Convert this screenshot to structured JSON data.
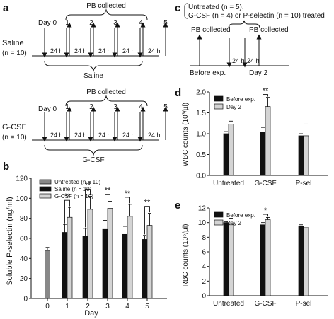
{
  "panels": {
    "a": {
      "letter": "a",
      "top": {
        "group_label": "Saline",
        "group_n": "(n = 10)",
        "day0": "Day 0",
        "day_numbers": [
          "1",
          "2",
          "3",
          "4",
          "5"
        ],
        "interval": "24 h",
        "pb": "PB collected",
        "treatment": "Saline"
      },
      "bottom": {
        "group_label": "G-CSF",
        "group_n": "(n = 10)",
        "day0": "Day 0",
        "day_numbers": [
          "1",
          "2",
          "3",
          "4",
          "5"
        ],
        "interval": "24 h",
        "pb": "PB collected",
        "treatment": "G-CSF"
      }
    },
    "c": {
      "letter": "c",
      "line1": "Untreated (n = 5),",
      "line2": "G-CSF (n = 4) or P-selectin (n = 10) treated",
      "pb_left": "PB collected",
      "pb_right": "PB collected",
      "interval": "24 h",
      "before": "Before exp.",
      "day2": "Day 2"
    }
  },
  "chart_data": [
    {
      "id": "b",
      "letter": "b",
      "type": "bar",
      "ylabel": "Soluble P-selectin (ng/ml)",
      "xlabel": "Day",
      "ylim": [
        0,
        120
      ],
      "yticks": [
        "0",
        "20",
        "40",
        "60",
        "80",
        "100",
        "120"
      ],
      "categories": [
        "0",
        "1",
        "2",
        "3",
        "4",
        "5"
      ],
      "legend": [
        "Untreated (n = 10)",
        "Saline (n = 10)",
        "G-CSF (n = 10)"
      ],
      "legend_position": "top-left",
      "colors": [
        "#888888",
        "#111111",
        "#d4d4d4"
      ],
      "untreated": {
        "values": [
          48
        ],
        "errors": [
          3
        ]
      },
      "saline": {
        "values": [
          66,
          62,
          69,
          64,
          59
        ],
        "errors": [
          8,
          8,
          9,
          8,
          4
        ]
      },
      "gcsf": {
        "values": [
          81,
          89,
          90,
          82,
          73
        ],
        "errors": [
          10,
          13,
          7,
          12,
          12
        ]
      },
      "significance": [
        "**",
        "**",
        "**",
        "**",
        "**"
      ]
    },
    {
      "id": "d",
      "letter": "d",
      "type": "bar",
      "ylabel": "WBC counts (10³/µl)",
      "ylim": [
        0,
        2.0
      ],
      "yticks": [
        "0.0",
        "0.5",
        "1.0",
        "1.5",
        "2.0"
      ],
      "categories": [
        "Untreated",
        "G-CSF",
        "P-sel"
      ],
      "legend": [
        "Before exp.",
        "Day 2"
      ],
      "legend_position": "top-left",
      "colors": [
        "#111111",
        "#d4d4d4"
      ],
      "before": {
        "values": [
          1.0,
          1.03,
          0.95
        ],
        "errors": [
          0.05,
          0.12,
          0.05
        ]
      },
      "day2": {
        "values": [
          1.23,
          1.65,
          0.95
        ],
        "errors": [
          0.07,
          0.22,
          0.28
        ]
      },
      "significance": [
        {
          "category": 1,
          "text": "**"
        }
      ]
    },
    {
      "id": "e",
      "letter": "e",
      "type": "bar",
      "ylabel": "RBC counts (10⁶/µl)",
      "ylim": [
        0,
        12
      ],
      "yticks": [
        "0",
        "2",
        "4",
        "6",
        "8",
        "10",
        "12"
      ],
      "categories": [
        "Untreated",
        "G-CSF",
        "P-sel"
      ],
      "legend": [
        "Before exp.",
        "Day 2"
      ],
      "legend_position": "top-left",
      "colors": [
        "#111111",
        "#d4d4d4"
      ],
      "before": {
        "values": [
          10.0,
          9.7,
          9.5
        ],
        "errors": [
          0.1,
          0.3,
          0.2
        ]
      },
      "day2": {
        "values": [
          9.7,
          10.4,
          9.3
        ],
        "errors": [
          0.9,
          0.3,
          1.2
        ]
      },
      "significance": [
        {
          "category": 1,
          "text": "*"
        }
      ]
    }
  ]
}
